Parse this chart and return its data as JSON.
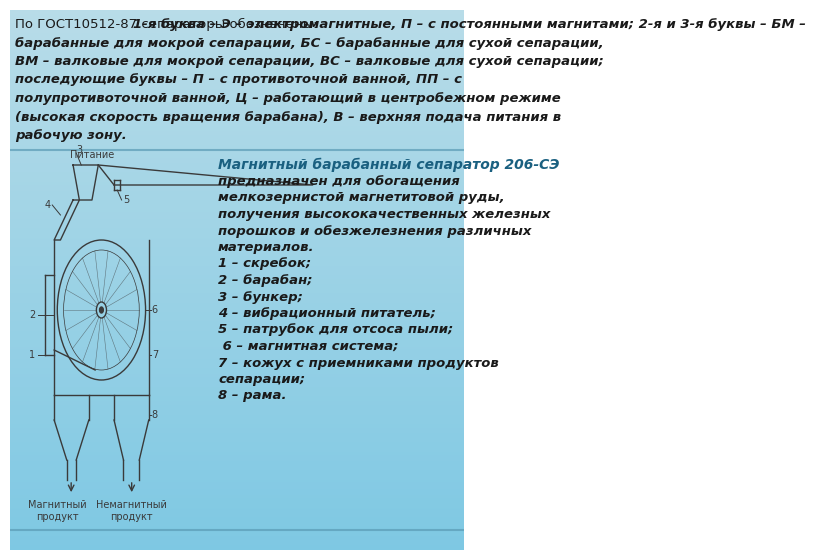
{
  "bg_color_top": "#7ec8e3",
  "bg_color_bottom": "#b8dce8",
  "text_color_main": "#1a1a2e",
  "text_color_italic": "#1a1a2e",
  "title_bold_part": "1-я буква – Э – электромагнитные, П – с постоянными магнитами; 2-я и 3-я буквы – БМ – барабанные для мокрой сепарации, БС – барабанные для сухой сепарации, ВМ – валковые для мокрой сепарации, ВС – валковые для сухой сепарации; последующие буквы – П – с противоточной ванной, ПП – с полупротивоточной ванной, Ц – работающий в центробежном режиме (высокая скорость вращения барабана), В – верхняя подача питания в рабочую зону.",
  "title_normal_part": "По ГОСТ10512-87 сепараторы обозначены: ",
  "right_title": "Магнитный барабанный сепаратор 206-СЭ",
  "right_text": "предназначен для обогащения\nмелкозернистой магнетитовой руды,\nполучения высококачественных железных\nпорошков и обезжелезнения различных\nматериалов.\n1 – скребок;\n2 – барабан;\n3 – бункер;\n4 – вибрационный питатель;\n5 – патрубок для отсоса пыли;\n 6 – магнитная система;\n7 – кожух с приемниками продуктов\nсепарации;\n8 – рама.",
  "diagram_label_pitanie": "Питание",
  "diagram_label_mag": "Магнитный\nпродукт",
  "diagram_label_nemag": "Немагнитный\nпродукт",
  "line_color": "#3a3a3a",
  "divider_color": "#5a9ab5"
}
